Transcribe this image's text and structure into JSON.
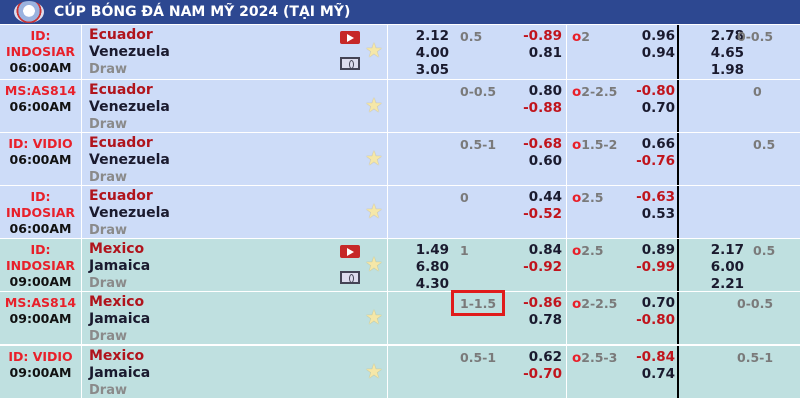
{
  "header": {
    "title": "CÚP BÓNG ĐÁ NAM MỸ 2024 (TẠI MỸ)"
  },
  "colors": {
    "header": "#2d4891",
    "row_a": "#cddcf8",
    "row_b": "#bfe0e0",
    "highlight": "#e01b1b"
  },
  "rows": [
    {
      "channel": "ID: INDOSIAR",
      "time": "06:00AM",
      "home": "Ecuador",
      "away": "Venezuela",
      "draw": "Draw",
      "icons": [
        "tv-icon",
        "pitch-icon"
      ],
      "bg": "a",
      "x12": [
        "2.12",
        "4.00",
        "3.05"
      ],
      "hcap": "0.5",
      "h1": "-0.89",
      "h2": "0.81",
      "ou": "2",
      "o1": "0.96",
      "o2": "0.94",
      "fx12": [
        "2.78",
        "4.65",
        "1.98"
      ],
      "fh": "0-0.5"
    },
    {
      "channel": "MS:AS814",
      "time": "06:00AM",
      "home": "Ecuador",
      "away": "Venezuela",
      "draw": "Draw",
      "icons": [],
      "bg": "a",
      "x12": [
        "",
        "",
        ""
      ],
      "hcap": "0-0.5",
      "h1": "0.80",
      "h2": "-0.88",
      "ou": "2-2.5",
      "o1": "-0.80",
      "o2": "0.70",
      "fx12": [
        "",
        "",
        ""
      ],
      "fh": "0"
    },
    {
      "channel": "ID: VIDIO",
      "time": "06:00AM",
      "home": "Ecuador",
      "away": "Venezuela",
      "draw": "Draw",
      "icons": [],
      "bg": "a",
      "x12": [
        "",
        "",
        ""
      ],
      "hcap": "0.5-1",
      "h1": "-0.68",
      "h2": "0.60",
      "ou": "1.5-2",
      "o1": "0.66",
      "o2": "-0.76",
      "fx12": [
        "",
        "",
        ""
      ],
      "fh": "0.5"
    },
    {
      "channel": "ID: INDOSIAR",
      "time": "06:00AM",
      "home": "Ecuador",
      "away": "Venezuela",
      "draw": "Draw",
      "icons": [],
      "bg": "a",
      "x12": [
        "",
        "",
        ""
      ],
      "hcap": "0",
      "h1": "0.44",
      "h2": "-0.52",
      "ou": "2.5",
      "o1": "-0.63",
      "o2": "0.53",
      "fx12": [
        "",
        "",
        ""
      ],
      "fh": ""
    },
    {
      "channel": "ID: INDOSIAR",
      "time": "09:00AM",
      "home": "Mexico",
      "away": "Jamaica",
      "draw": "Draw",
      "icons": [
        "tv-icon",
        "pitch-icon"
      ],
      "bg": "b",
      "x12": [
        "1.49",
        "6.80",
        "4.30"
      ],
      "hcap": "1",
      "h1": "0.84",
      "h2": "-0.92",
      "ou": "2.5",
      "o1": "0.89",
      "o2": "-0.99",
      "fx12": [
        "2.17",
        "6.00",
        "2.21"
      ],
      "fh": "0.5"
    },
    {
      "channel": "MS:AS814",
      "time": "09:00AM",
      "home": "Mexico",
      "away": "Jamaica",
      "draw": "Draw",
      "icons": [],
      "bg": "b",
      "x12": [
        "",
        "",
        ""
      ],
      "hcap": "1-1.5",
      "h1": "-0.86",
      "h2": "0.78",
      "ou": "2-2.5",
      "o1": "0.70",
      "o2": "-0.80",
      "fx12": [
        "",
        "",
        ""
      ],
      "fh": "0-0.5"
    },
    {
      "channel": "ID: VIDIO",
      "time": "09:00AM",
      "home": "Mexico",
      "away": "Jamaica",
      "draw": "Draw",
      "icons": [],
      "bg": "b",
      "x12": [
        "",
        "",
        ""
      ],
      "hcap": "0.5-1",
      "h1": "0.62",
      "h2": "-0.70",
      "ou": "2.5-3",
      "o1": "-0.84",
      "o2": "0.74",
      "fx12": [
        "",
        "",
        ""
      ],
      "fh": "0.5-1"
    }
  ],
  "ou_prefix": "o"
}
